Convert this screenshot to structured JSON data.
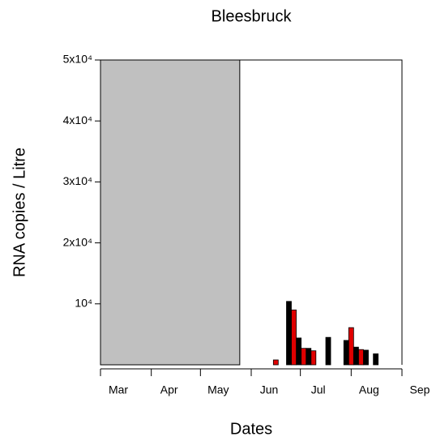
{
  "chart_data": {
    "type": "bar",
    "title": "Bleesbruck",
    "xlabel": "Dates",
    "ylabel": "RNA copies / Litre",
    "xlim": [
      0,
      184
    ],
    "xticks": [
      {
        "value": 0,
        "label": "Mar"
      },
      {
        "value": 31,
        "label": "Apr"
      },
      {
        "value": 61,
        "label": "May"
      },
      {
        "value": 92,
        "label": "Jun"
      },
      {
        "value": 122,
        "label": "Jul"
      },
      {
        "value": 153,
        "label": "Aug"
      },
      {
        "value": 184,
        "label": "Sep"
      }
    ],
    "ylim": [
      0,
      50000
    ],
    "yticks": [
      {
        "value": 10000,
        "label": "10⁴"
      },
      {
        "value": 20000,
        "label": "2x10⁴"
      },
      {
        "value": 30000,
        "label": "3x10⁴"
      },
      {
        "value": 40000,
        "label": "4x10⁴"
      },
      {
        "value": 50000,
        "label": "5x10⁴"
      }
    ],
    "shaded": [
      0,
      85
    ],
    "shade_color": "#c0c0c0",
    "series": [
      {
        "color": "#000000",
        "x": [
          115,
          121,
          127,
          139,
          150,
          156,
          162,
          168
        ],
        "values": [
          10400,
          4400,
          2700,
          4500,
          4000,
          2900,
          2400,
          1800
        ]
      },
      {
        "color": "#e00000",
        "x": [
          107,
          118,
          124,
          130,
          153,
          159
        ],
        "values": [
          800,
          9000,
          2700,
          2300,
          6100,
          2500
        ]
      }
    ]
  }
}
